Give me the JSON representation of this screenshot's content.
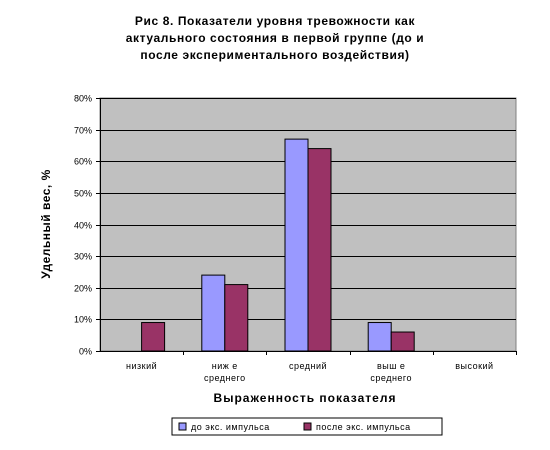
{
  "chart_data": {
    "type": "bar",
    "title_lines": [
      "Рис 8. Показатели уровня тревожности как",
      "актуального состояния в первой группе (до и",
      "после экспериментального воздействия)"
    ],
    "xlabel": "Выраженность показателя",
    "ylabel": "Удельный вес, %",
    "categories": [
      [
        "низкий"
      ],
      [
        "ниж е",
        "среднего"
      ],
      [
        "средний"
      ],
      [
        "выш е",
        "среднего"
      ],
      [
        "высокий"
      ]
    ],
    "series": [
      {
        "name": "до экс. импульса",
        "values": [
          0,
          24,
          67,
          9,
          0
        ],
        "color": "#9999FF"
      },
      {
        "name": "после экс. импульса",
        "values": [
          9,
          21,
          64,
          6,
          0
        ],
        "color": "#993366"
      }
    ],
    "ylim": [
      0,
      80
    ],
    "yticks": [
      0,
      10,
      20,
      30,
      40,
      50,
      60,
      70,
      80
    ],
    "ytick_suffix": "%",
    "grid": true,
    "plot_background": "#C0C0C0",
    "legend_position": "bottom"
  }
}
